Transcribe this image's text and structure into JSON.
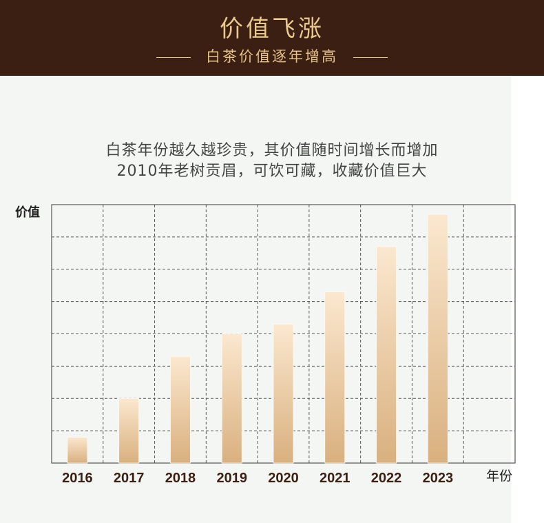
{
  "header": {
    "title": "价值飞涨",
    "subtitle": "白茶价值逐年增高"
  },
  "description": {
    "line1": "白茶年份越久越珍贵，其价值随时间增长而增加",
    "line2": "2010年老树贡眉，可饮可藏，收藏价值巨大"
  },
  "colors": {
    "header_bg": "#3b1f12",
    "gold": "#e9c98d",
    "bar_top": "#fbe8cf",
    "bar_bottom": "#d9b07f",
    "grid": "#555555",
    "tick_label": "#3b1f12"
  },
  "chart_data": {
    "type": "bar",
    "ylabel": "价值",
    "xlabel": "年份",
    "categories": [
      "2016",
      "2017",
      "2018",
      "2019",
      "2020",
      "2021",
      "2022",
      "2023"
    ],
    "values": [
      0.8,
      2.0,
      3.3,
      4.0,
      4.3,
      5.3,
      6.7,
      7.7
    ],
    "ylim": [
      0,
      8
    ],
    "grid": true,
    "legend": "none"
  }
}
